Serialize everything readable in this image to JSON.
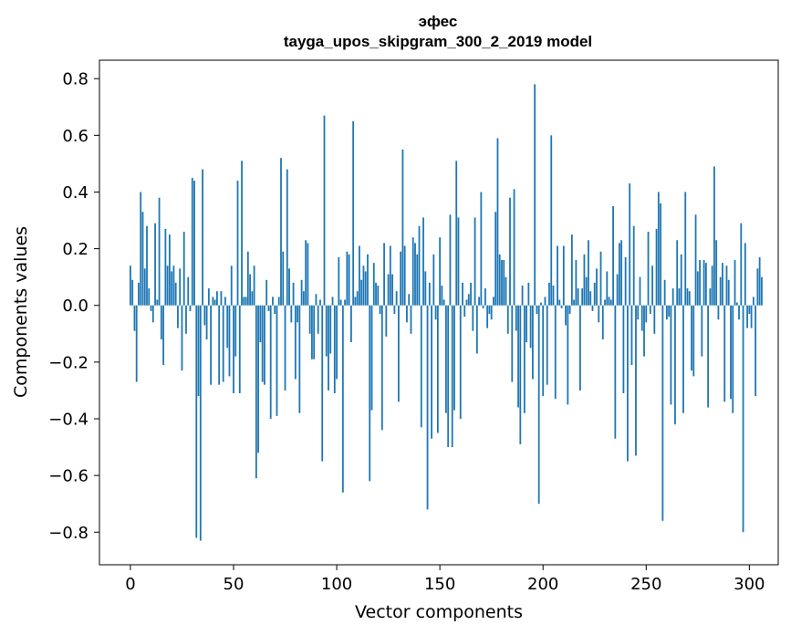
{
  "chart_data": {
    "type": "bar",
    "title_line1": "эфес",
    "title_line2": "tayga_upos_skipgram_300_2_2019 model",
    "xlabel": "Vector components",
    "ylabel": "Components values",
    "xlim": [
      -15,
      314
    ],
    "ylim": [
      -0.915,
      0.865
    ],
    "xticks": [
      0,
      50,
      100,
      150,
      200,
      250,
      300
    ],
    "xtick_labels": [
      "0",
      "50",
      "100",
      "150",
      "200",
      "250",
      "300"
    ],
    "yticks": [
      -0.8,
      -0.6,
      -0.4,
      -0.2,
      0.0,
      0.2,
      0.4,
      0.6,
      0.8
    ],
    "ytick_labels": [
      "−0.8",
      "−0.6",
      "−0.4",
      "−0.2",
      "0.0",
      "0.2",
      "0.4",
      "0.6",
      "0.8"
    ],
    "bar_color": "#1f77b4",
    "grid": false,
    "values": [
      0.14,
      0.09,
      -0.09,
      -0.27,
      0.08,
      0.4,
      0.33,
      0.13,
      0.28,
      0.06,
      -0.02,
      -0.06,
      0.29,
      0.02,
      0.38,
      -0.12,
      -0.21,
      0.27,
      0.14,
      0.25,
      0.12,
      0.14,
      0.08,
      -0.08,
      0.13,
      -0.23,
      0.26,
      -0.1,
      0.1,
      -0.02,
      0.45,
      0.44,
      -0.82,
      -0.32,
      -0.83,
      0.48,
      -0.07,
      -0.12,
      0.06,
      -0.28,
      0.03,
      0.02,
      0.05,
      -0.28,
      0.05,
      -0.27,
      0.03,
      -0.15,
      -0.25,
      0.14,
      -0.31,
      -0.18,
      0.44,
      -0.31,
      0.51,
      0.03,
      0.03,
      0.19,
      0.11,
      0.05,
      0.14,
      -0.61,
      -0.52,
      -0.13,
      -0.27,
      -0.28,
      0.09,
      -0.02,
      -0.4,
      0.03,
      -0.03,
      -0.39,
      0.03,
      0.52,
      0.19,
      -0.3,
      0.48,
      0.13,
      -0.06,
      0.08,
      -0.26,
      -0.06,
      -0.38,
      0.09,
      0.05,
      0.23,
      0.22,
      -0.1,
      -0.19,
      -0.19,
      0.04,
      -0.1,
      0.02,
      -0.55,
      0.67,
      -0.18,
      -0.3,
      -0.17,
      0.03,
      -0.31,
      -0.26,
      0.17,
      0.02,
      -0.66,
      0.02,
      0.19,
      0.18,
      -0.13,
      0.65,
      0.03,
      0.05,
      0.21,
      0.09,
      0.14,
      0.12,
      0.18,
      -0.62,
      -0.37,
      0.15,
      0.08,
      0.07,
      -0.03,
      -0.44,
      0.22,
      -0.11,
      0.11,
      0.21,
      0.11,
      -0.03,
      0.05,
      -0.34,
      0.19,
      0.55,
      0.21,
      -0.06,
      0.04,
      -0.1,
      0.24,
      0.22,
      0.18,
      0.28,
      -0.43,
      0.31,
      0.12,
      -0.72,
      0.08,
      -0.47,
      0.18,
      -0.05,
      -0.45,
      0.24,
      0.07,
      0.02,
      -0.38,
      -0.5,
      0.32,
      -0.5,
      -0.37,
      0.51,
      0.31,
      -0.4,
      0.08,
      -0.04,
      0.02,
      0.04,
      0.08,
      -0.09,
      0.31,
      -0.17,
      0.03,
      0.4,
      -0.01,
      0.06,
      -0.08,
      -0.03,
      -0.05,
      0.03,
      0.33,
      0.59,
      0.18,
      0.16,
      0.16,
      0.1,
      -0.1,
      0.38,
      -0.27,
      0.41,
      -0.09,
      -0.36,
      -0.49,
      0.07,
      -0.38,
      -0.13,
      0.08,
      -0.15,
      -0.26,
      0.78,
      -0.03,
      -0.7,
      0.01,
      -0.32,
      0.03,
      -0.28,
      0.08,
      0.6,
      0.07,
      -0.33,
      0.21,
      0.02,
      -0.01,
      0.21,
      -0.07,
      -0.35,
      -0.03,
      0.25,
      0.02,
      0.16,
      0.06,
      -0.3,
      0.06,
      0.18,
      0.1,
      0.23,
      0.05,
      -0.02,
      0.08,
      0.13,
      -0.06,
      0.19,
      -0.12,
      0.02,
      0.12,
      0.03,
      0.02,
      0.35,
      -0.47,
      0.11,
      0.22,
      0.23,
      -0.31,
      0.17,
      -0.55,
      0.43,
      -0.21,
      0.28,
      -0.53,
      -0.05,
      0.1,
      -0.09,
      -0.18,
      -0.06,
      0.26,
      -0.03,
      0.14,
      -0.1,
      0.27,
      0.4,
      0.36,
      -0.76,
      0.09,
      -0.05,
      -0.04,
      -0.35,
      0.06,
      -0.42,
      0.23,
      0.06,
      0.18,
      -0.38,
      0.4,
      0.06,
      0.05,
      -0.23,
      -0.25,
      0.32,
      0.12,
      0.16,
      -0.18,
      0.16,
      0.15,
      -0.36,
      0.06,
      0.14,
      0.49,
      0.23,
      -0.05,
      0.1,
      0.15,
      -0.34,
      0.14,
      0.09,
      -0.33,
      -0.38,
      0.16,
      0.01,
      -0.05,
      0.29,
      -0.8,
      0.22,
      -0.08,
      -0.03,
      -0.08,
      0.03,
      -0.32,
      0.13,
      0.17,
      0.1
    ]
  }
}
